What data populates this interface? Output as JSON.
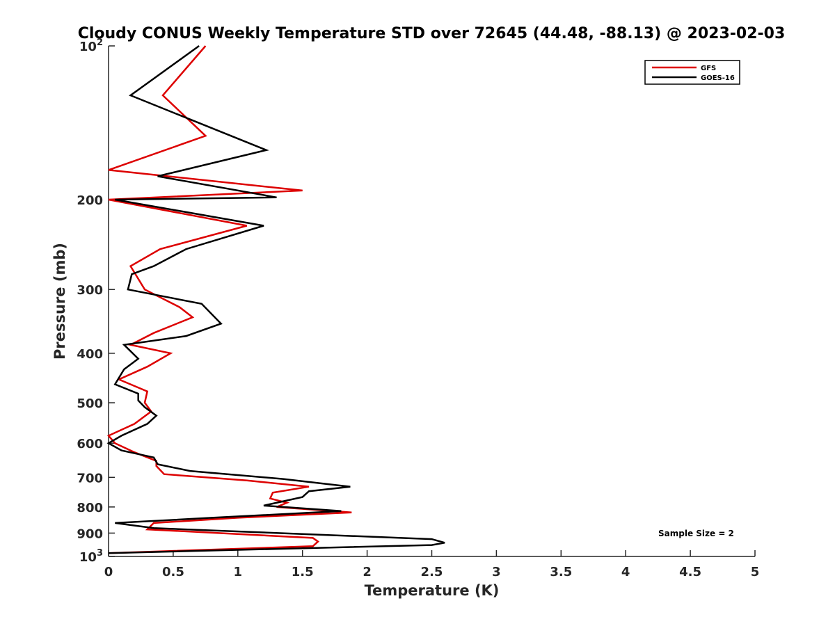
{
  "chart_data": {
    "type": "line",
    "title": "Cloudy CONUS Weekly Temperature STD over 72645 (44.48, -88.13) @ 2023-02-03",
    "xlabel": "Temperature (K)",
    "ylabel": "Pressure (mb)",
    "xlim": [
      0,
      5
    ],
    "ylim": [
      100,
      1000
    ],
    "y_scale": "log",
    "y_reversed": true,
    "grid": false,
    "legend_position": "top-right",
    "x_ticks": [
      "0",
      "0.5",
      "1",
      "1.5",
      "2",
      "2.5",
      "3",
      "3.5",
      "4",
      "4.5",
      "5"
    ],
    "y_ticks": [
      {
        "value": 100,
        "label": "10",
        "sup": "2"
      },
      {
        "value": 200,
        "label": "200",
        "sup": ""
      },
      {
        "value": 300,
        "label": "300",
        "sup": ""
      },
      {
        "value": 400,
        "label": "400",
        "sup": ""
      },
      {
        "value": 500,
        "label": "500",
        "sup": ""
      },
      {
        "value": 600,
        "label": "600",
        "sup": ""
      },
      {
        "value": 700,
        "label": "700",
        "sup": ""
      },
      {
        "value": 800,
        "label": "800",
        "sup": ""
      },
      {
        "value": 900,
        "label": "900",
        "sup": ""
      },
      {
        "value": 1000,
        "label": "10",
        "sup": "3"
      }
    ],
    "annotation": "Sample Size = 2",
    "series": [
      {
        "name": "GFS",
        "color": "#dd0000",
        "points": [
          [
            0.75,
            100
          ],
          [
            0.42,
            125
          ],
          [
            0.75,
            150
          ],
          [
            0.0,
            175
          ],
          [
            1.5,
            192
          ],
          [
            0.0,
            200
          ],
          [
            1.07,
            225
          ],
          [
            0.4,
            250
          ],
          [
            0.17,
            270
          ],
          [
            0.28,
            300
          ],
          [
            0.55,
            325
          ],
          [
            0.65,
            340
          ],
          [
            0.35,
            365
          ],
          [
            0.17,
            385
          ],
          [
            0.48,
            400
          ],
          [
            0.3,
            425
          ],
          [
            0.08,
            450
          ],
          [
            0.3,
            475
          ],
          [
            0.28,
            500
          ],
          [
            0.33,
            520
          ],
          [
            0.2,
            550
          ],
          [
            0.0,
            580
          ],
          [
            0.05,
            600
          ],
          [
            0.2,
            625
          ],
          [
            0.37,
            650
          ],
          [
            0.37,
            665
          ],
          [
            0.43,
            690
          ],
          [
            1.07,
            710
          ],
          [
            1.55,
            730
          ],
          [
            1.27,
            750
          ],
          [
            1.25,
            770
          ],
          [
            1.38,
            785
          ],
          [
            1.3,
            800
          ],
          [
            1.88,
            820
          ],
          [
            1.0,
            840
          ],
          [
            0.35,
            860
          ],
          [
            0.3,
            885
          ],
          [
            1.58,
            920
          ],
          [
            1.62,
            935
          ],
          [
            1.58,
            955
          ],
          [
            0.0,
            985
          ]
        ]
      },
      {
        "name": "GOES-16",
        "color": "#000000",
        "points": [
          [
            0.7,
            100
          ],
          [
            0.17,
            125
          ],
          [
            1.22,
            160
          ],
          [
            0.38,
            180
          ],
          [
            1.3,
            198
          ],
          [
            0.05,
            200
          ],
          [
            1.2,
            225
          ],
          [
            0.6,
            250
          ],
          [
            0.35,
            270
          ],
          [
            0.18,
            280
          ],
          [
            0.15,
            300
          ],
          [
            0.72,
            320
          ],
          [
            0.87,
            350
          ],
          [
            0.6,
            370
          ],
          [
            0.12,
            385
          ],
          [
            0.23,
            410
          ],
          [
            0.12,
            430
          ],
          [
            0.05,
            460
          ],
          [
            0.23,
            480
          ],
          [
            0.23,
            495
          ],
          [
            0.28,
            510
          ],
          [
            0.37,
            530
          ],
          [
            0.3,
            550
          ],
          [
            0.1,
            580
          ],
          [
            0.0,
            600
          ],
          [
            0.1,
            620
          ],
          [
            0.35,
            640
          ],
          [
            0.38,
            660
          ],
          [
            0.63,
            680
          ],
          [
            1.35,
            705
          ],
          [
            1.87,
            730
          ],
          [
            1.55,
            745
          ],
          [
            1.5,
            765
          ],
          [
            1.2,
            795
          ],
          [
            1.8,
            815
          ],
          [
            0.8,
            840
          ],
          [
            0.05,
            860
          ],
          [
            0.35,
            880
          ],
          [
            2.5,
            925
          ],
          [
            2.6,
            940
          ],
          [
            2.5,
            950
          ],
          [
            0.0,
            985
          ]
        ]
      }
    ]
  }
}
